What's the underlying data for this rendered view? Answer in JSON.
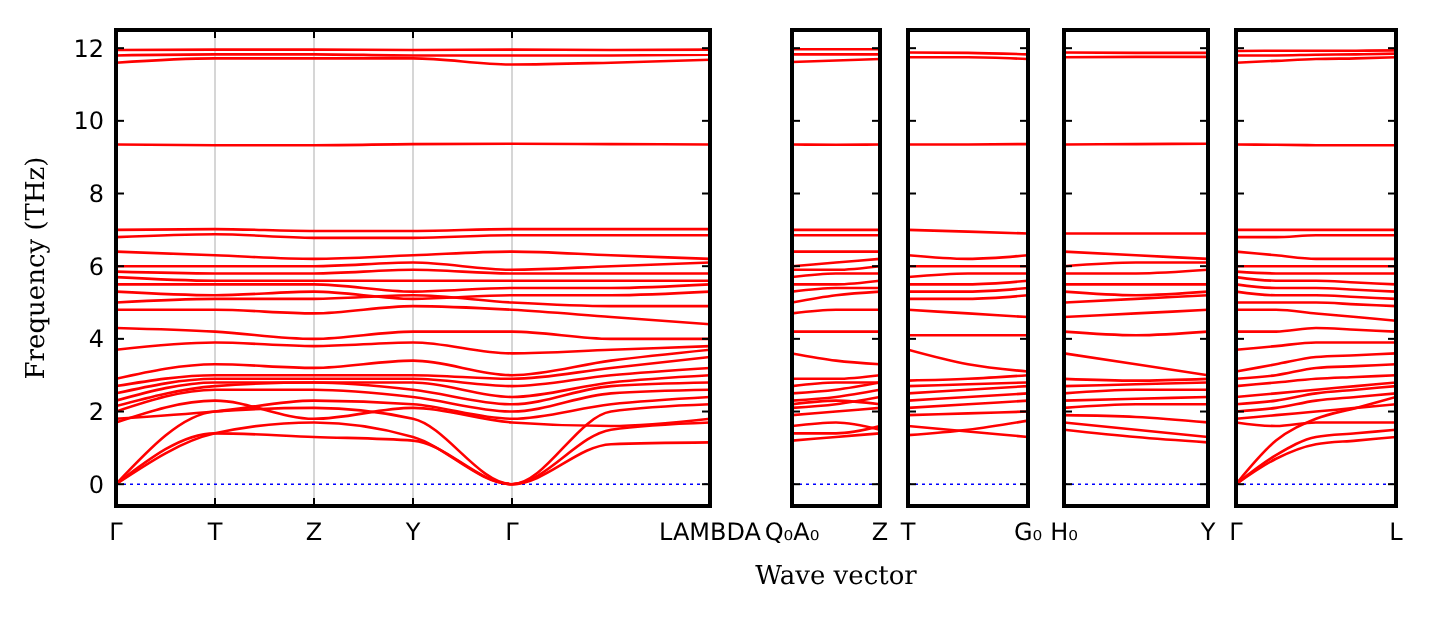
{
  "chart_data": [
    {
      "type": "line",
      "ylabel": "Frequency (THz)",
      "color": "#ff0000",
      "grid": "x",
      "categories": [
        "Γ",
        "T",
        "Z",
        "Y",
        "Γ",
        null,
        "LAMBDA"
      ],
      "ylim": [
        -0.6,
        12.5
      ],
      "yticks": [
        0,
        2,
        4,
        6,
        8,
        10,
        12
      ],
      "ref_lines": [
        {
          "axis": "y",
          "value": 0,
          "color": "#0000ff",
          "line_style": "dotted"
        }
      ],
      "series": [
        {
          "values": [
            0,
            1.4,
            1.3,
            1.2,
            0,
            1.1,
            1.15
          ]
        },
        {
          "values": [
            0,
            1.4,
            1.7,
            1.3,
            0,
            1.5,
            1.7
          ]
        },
        {
          "values": [
            0,
            2.0,
            2.1,
            1.8,
            0,
            2.0,
            2.2
          ]
        },
        {
          "values": [
            1.7,
            2.3,
            1.8,
            2.1,
            1.7,
            1.6,
            1.8
          ]
        },
        {
          "values": [
            1.8,
            2.0,
            2.3,
            2.2,
            1.8,
            2.2,
            2.4
          ]
        },
        {
          "values": [
            2.0,
            2.6,
            2.6,
            2.4,
            2.0,
            2.5,
            2.6
          ]
        },
        {
          "values": [
            2.15,
            2.7,
            2.8,
            2.6,
            2.2,
            2.7,
            2.8
          ]
        },
        {
          "values": [
            2.3,
            2.8,
            2.8,
            2.8,
            2.4,
            2.8,
            3.0
          ]
        },
        {
          "values": [
            2.5,
            2.9,
            2.9,
            2.9,
            2.7,
            3.0,
            3.2
          ]
        },
        {
          "values": [
            2.7,
            3.0,
            3.0,
            3.0,
            2.9,
            3.2,
            3.5
          ]
        },
        {
          "values": [
            2.9,
            3.3,
            3.2,
            3.4,
            3.0,
            3.4,
            3.7
          ]
        },
        {
          "values": [
            3.7,
            3.9,
            3.8,
            3.9,
            3.6,
            3.7,
            3.8
          ]
        },
        {
          "values": [
            4.3,
            4.2,
            4.0,
            4.2,
            4.2,
            4.0,
            4.0
          ]
        },
        {
          "values": [
            4.8,
            4.8,
            4.7,
            4.9,
            4.8,
            4.6,
            4.4
          ]
        },
        {
          "values": [
            5.0,
            5.1,
            5.1,
            5.2,
            5.0,
            4.9,
            4.9
          ]
        },
        {
          "values": [
            5.3,
            5.2,
            5.3,
            5.1,
            5.2,
            5.2,
            5.3
          ]
        },
        {
          "values": [
            5.5,
            5.5,
            5.5,
            5.3,
            5.4,
            5.4,
            5.5
          ]
        },
        {
          "values": [
            5.7,
            5.6,
            5.6,
            5.6,
            5.6,
            5.6,
            5.6
          ]
        },
        {
          "values": [
            5.85,
            5.8,
            5.8,
            5.9,
            5.8,
            5.8,
            5.8
          ]
        },
        {
          "values": [
            6.0,
            6.0,
            6.0,
            6.1,
            5.9,
            6.0,
            6.1
          ]
        },
        {
          "values": [
            6.4,
            6.3,
            6.2,
            6.3,
            6.4,
            6.3,
            6.2
          ]
        },
        {
          "values": [
            6.8,
            6.88,
            6.78,
            6.78,
            6.85,
            6.85,
            6.85
          ]
        },
        {
          "values": [
            7.0,
            7.02,
            6.97,
            6.97,
            7.02,
            7.02,
            7.02
          ]
        },
        {
          "values": [
            9.35,
            9.33,
            9.33,
            9.36,
            9.37,
            9.36,
            9.35
          ]
        },
        {
          "values": [
            11.6,
            11.72,
            11.72,
            11.72,
            11.55,
            11.6,
            11.68
          ]
        },
        {
          "values": [
            11.8,
            11.83,
            11.83,
            11.8,
            11.8,
            11.8,
            11.82
          ]
        },
        {
          "values": [
            11.95,
            11.96,
            11.96,
            11.95,
            11.96,
            11.95,
            11.96
          ]
        }
      ]
    },
    {
      "type": "line",
      "xlabel": "Wave vector",
      "color": "#ff0000",
      "tick_labels": "x",
      "categories": [
        "Q₀A₀",
        null,
        "Z"
      ],
      "ylim": [
        -0.6,
        12.5
      ],
      "yticks": [
        0,
        2,
        4,
        6,
        8,
        10,
        12
      ],
      "ref_lines": [
        {
          "axis": "y",
          "value": 0,
          "color": "#0000ff",
          "line_style": "dotted"
        }
      ],
      "series": [
        {
          "values": [
            1.2,
            1.3,
            1.4
          ]
        },
        {
          "values": [
            1.4,
            1.4,
            1.6
          ]
        },
        {
          "values": [
            1.6,
            1.7,
            1.5
          ]
        },
        {
          "values": [
            1.9,
            2.0,
            2.1
          ]
        },
        {
          "values": [
            2.1,
            2.2,
            2.4
          ]
        },
        {
          "values": [
            2.2,
            2.3,
            2.2
          ]
        },
        {
          "values": [
            2.3,
            2.4,
            2.6
          ]
        },
        {
          "values": [
            2.5,
            2.6,
            2.8
          ]
        },
        {
          "values": [
            2.7,
            2.8,
            2.8
          ]
        },
        {
          "values": [
            2.9,
            2.9,
            3.0
          ]
        },
        {
          "values": [
            3.6,
            3.4,
            3.3
          ]
        },
        {
          "values": [
            4.2,
            4.2,
            4.2
          ]
        },
        {
          "values": [
            4.7,
            4.8,
            4.8
          ]
        },
        {
          "values": [
            5.0,
            5.2,
            5.3
          ]
        },
        {
          "values": [
            5.3,
            5.4,
            5.4
          ]
        },
        {
          "values": [
            5.5,
            5.5,
            5.6
          ]
        },
        {
          "values": [
            5.7,
            5.8,
            5.8
          ]
        },
        {
          "values": [
            5.9,
            5.9,
            6.0
          ]
        },
        {
          "values": [
            6.0,
            6.1,
            6.2
          ]
        },
        {
          "values": [
            6.4,
            6.4,
            6.4
          ]
        },
        {
          "values": [
            6.85,
            6.85,
            6.85
          ]
        },
        {
          "values": [
            7.0,
            7.0,
            7.0
          ]
        },
        {
          "values": [
            9.35,
            9.34,
            9.35
          ]
        },
        {
          "values": [
            11.62,
            11.66,
            11.7
          ]
        },
        {
          "values": [
            11.83,
            11.83,
            11.83
          ]
        },
        {
          "values": [
            11.97,
            11.97,
            11.97
          ]
        }
      ]
    },
    {
      "type": "line",
      "color": "#ff0000",
      "tick_labels": "x",
      "categories": [
        "T",
        null,
        "G₀"
      ],
      "ylim": [
        -0.6,
        12.5
      ],
      "yticks": [
        0,
        2,
        4,
        6,
        8,
        10,
        12
      ],
      "ref_lines": [
        {
          "axis": "y",
          "value": 0,
          "color": "#0000ff",
          "line_style": "dotted"
        }
      ],
      "series": [
        {
          "values": [
            1.35,
            1.5,
            1.75
          ]
        },
        {
          "values": [
            1.6,
            1.45,
            1.3
          ]
        },
        {
          "values": [
            1.9,
            1.95,
            2.0
          ]
        },
        {
          "values": [
            2.1,
            2.2,
            2.3
          ]
        },
        {
          "values": [
            2.3,
            2.4,
            2.5
          ]
        },
        {
          "values": [
            2.5,
            2.6,
            2.7
          ]
        },
        {
          "values": [
            2.7,
            2.75,
            2.8
          ]
        },
        {
          "values": [
            2.85,
            2.9,
            3.0
          ]
        },
        {
          "values": [
            3.7,
            3.3,
            3.1
          ]
        },
        {
          "values": [
            4.1,
            4.1,
            4.1
          ]
        },
        {
          "values": [
            4.8,
            4.7,
            4.6
          ]
        },
        {
          "values": [
            5.1,
            5.1,
            5.2
          ]
        },
        {
          "values": [
            5.3,
            5.3,
            5.4
          ]
        },
        {
          "values": [
            5.5,
            5.5,
            5.6
          ]
        },
        {
          "values": [
            5.7,
            5.8,
            5.8
          ]
        },
        {
          "values": [
            6.0,
            6.0,
            6.0
          ]
        },
        {
          "values": [
            6.3,
            6.2,
            6.3
          ]
        },
        {
          "values": [
            7.0,
            6.95,
            6.9
          ]
        },
        {
          "values": [
            9.35,
            9.35,
            9.36
          ]
        },
        {
          "values": [
            11.75,
            11.75,
            11.7
          ]
        },
        {
          "values": [
            11.88,
            11.87,
            11.83
          ]
        }
      ]
    },
    {
      "type": "line",
      "color": "#ff0000",
      "tick_labels": "x",
      "categories": [
        "H₀",
        null,
        "Y"
      ],
      "ylim": [
        -0.6,
        12.5
      ],
      "yticks": [
        0,
        2,
        4,
        6,
        8,
        10,
        12
      ],
      "ref_lines": [
        {
          "axis": "y",
          "value": 0,
          "color": "#0000ff",
          "line_style": "dotted"
        }
      ],
      "series": [
        {
          "values": [
            1.5,
            1.3,
            1.15
          ]
        },
        {
          "values": [
            1.7,
            1.5,
            1.3
          ]
        },
        {
          "values": [
            1.9,
            1.85,
            1.7
          ]
        },
        {
          "values": [
            2.1,
            2.2,
            2.2
          ]
        },
        {
          "values": [
            2.3,
            2.35,
            2.4
          ]
        },
        {
          "values": [
            2.5,
            2.6,
            2.6
          ]
        },
        {
          "values": [
            2.7,
            2.75,
            2.8
          ]
        },
        {
          "values": [
            2.9,
            2.85,
            2.9
          ]
        },
        {
          "values": [
            3.6,
            3.3,
            3.0
          ]
        },
        {
          "values": [
            4.2,
            4.1,
            4.2
          ]
        },
        {
          "values": [
            4.6,
            4.7,
            4.8
          ]
        },
        {
          "values": [
            5.0,
            5.1,
            5.2
          ]
        },
        {
          "values": [
            5.3,
            5.2,
            5.3
          ]
        },
        {
          "values": [
            5.5,
            5.5,
            5.5
          ]
        },
        {
          "values": [
            5.8,
            5.8,
            5.9
          ]
        },
        {
          "values": [
            6.0,
            6.1,
            6.1
          ]
        },
        {
          "values": [
            6.4,
            6.3,
            6.2
          ]
        },
        {
          "values": [
            6.9,
            6.9,
            6.9
          ]
        },
        {
          "values": [
            9.35,
            9.36,
            9.37
          ]
        },
        {
          "values": [
            11.75,
            11.76,
            11.76
          ]
        },
        {
          "values": [
            11.88,
            11.87,
            11.87
          ]
        }
      ]
    },
    {
      "type": "line",
      "color": "#ff0000",
      "tick_labels": "x",
      "categories": [
        "Γ",
        null,
        null,
        null,
        "L"
      ],
      "ylim": [
        -0.6,
        12.5
      ],
      "yticks": [
        0,
        2,
        4,
        6,
        8,
        10,
        12
      ],
      "ref_lines": [
        {
          "axis": "y",
          "value": 0,
          "color": "#0000ff",
          "line_style": "dotted"
        }
      ],
      "series": [
        {
          "values": [
            0,
            0.7,
            1.1,
            1.2,
            1.3
          ]
        },
        {
          "values": [
            0,
            0.8,
            1.3,
            1.4,
            1.5
          ]
        },
        {
          "values": [
            0,
            1.2,
            1.8,
            2.1,
            2.4
          ]
        },
        {
          "values": [
            1.7,
            1.6,
            1.7,
            1.7,
            1.7
          ]
        },
        {
          "values": [
            1.8,
            1.9,
            2.0,
            2.1,
            2.2
          ]
        },
        {
          "values": [
            2.0,
            2.1,
            2.3,
            2.4,
            2.5
          ]
        },
        {
          "values": [
            2.2,
            2.3,
            2.5,
            2.6,
            2.7
          ]
        },
        {
          "values": [
            2.4,
            2.5,
            2.6,
            2.7,
            2.8
          ]
        },
        {
          "values": [
            2.7,
            2.8,
            2.9,
            2.95,
            3.0
          ]
        },
        {
          "values": [
            2.9,
            3.0,
            3.2,
            3.25,
            3.3
          ]
        },
        {
          "values": [
            3.1,
            3.3,
            3.5,
            3.55,
            3.6
          ]
        },
        {
          "values": [
            3.7,
            3.8,
            3.9,
            3.9,
            3.9
          ]
        },
        {
          "values": [
            4.2,
            4.2,
            4.3,
            4.25,
            4.2
          ]
        },
        {
          "values": [
            4.8,
            4.8,
            4.7,
            4.6,
            4.5
          ]
        },
        {
          "values": [
            5.0,
            5.0,
            5.0,
            4.95,
            4.9
          ]
        },
        {
          "values": [
            5.3,
            5.2,
            5.2,
            5.15,
            5.1
          ]
        },
        {
          "values": [
            5.5,
            5.4,
            5.4,
            5.35,
            5.3
          ]
        },
        {
          "values": [
            5.7,
            5.6,
            5.6,
            5.55,
            5.5
          ]
        },
        {
          "values": [
            5.85,
            5.8,
            5.8,
            5.8,
            5.8
          ]
        },
        {
          "values": [
            6.0,
            6.0,
            6.0,
            6.0,
            6.0
          ]
        },
        {
          "values": [
            6.4,
            6.3,
            6.2,
            6.2,
            6.2
          ]
        },
        {
          "values": [
            6.8,
            6.8,
            6.85,
            6.85,
            6.85
          ]
        },
        {
          "values": [
            7.0,
            7.0,
            7.0,
            7.0,
            7.0
          ]
        },
        {
          "values": [
            9.35,
            9.34,
            9.33,
            9.33,
            9.33
          ]
        },
        {
          "values": [
            11.6,
            11.65,
            11.7,
            11.72,
            11.75
          ]
        },
        {
          "values": [
            11.8,
            11.8,
            11.82,
            11.83,
            11.85
          ]
        },
        {
          "values": [
            11.92,
            11.93,
            11.93,
            11.93,
            11.94
          ]
        }
      ]
    }
  ]
}
